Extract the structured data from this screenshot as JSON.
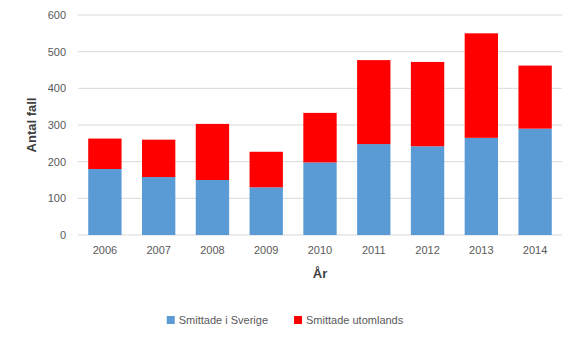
{
  "chart_data": {
    "type": "bar",
    "stacked": true,
    "grid": true,
    "legend": "bottom",
    "x_label": "År",
    "y_label": "Antal fall",
    "categories": [
      "2006",
      "2007",
      "2008",
      "2009",
      "2010",
      "2011",
      "2012",
      "2013",
      "2014"
    ],
    "series": [
      {
        "name": "Smittade i Sverige",
        "color": "#5b9bd5",
        "values": [
          180,
          158,
          150,
          130,
          198,
          248,
          242,
          265,
          290
        ]
      },
      {
        "name": "Smittade utomlands",
        "color": "#ff0000",
        "values": [
          83,
          102,
          153,
          97,
          135,
          229,
          230,
          285,
          172
        ]
      }
    ],
    "ylim": [
      0,
      600
    ],
    "yticks": [
      0,
      100,
      200,
      300,
      400,
      500,
      600
    ]
  }
}
